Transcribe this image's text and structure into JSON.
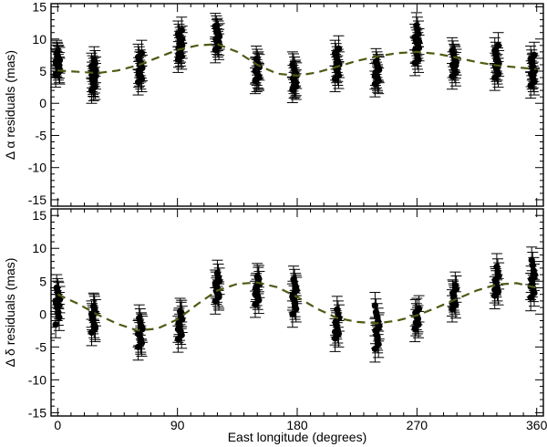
{
  "chart_data": [
    {
      "type": "scatter",
      "ylabel": "Δ α residuals (mas)",
      "xlim": [
        -5,
        365
      ],
      "ylim": [
        -16,
        15.5
      ],
      "xticks": [
        0,
        90,
        180,
        270,
        360
      ],
      "yticks": [
        -15,
        -10,
        -5,
        0,
        5,
        10,
        15
      ],
      "grid": false,
      "error_bar": 2,
      "groups": [
        {
          "x": 0,
          "y": [
            4.5,
            5.2,
            5.6,
            6.0,
            6.3,
            6.7,
            7.0,
            7.3,
            7.8,
            6.5,
            5.9,
            6.9,
            7.5,
            6.1,
            5.0
          ]
        },
        {
          "x": 27,
          "y": [
            2.0,
            2.6,
            3.0,
            3.4,
            3.8,
            4.2,
            4.6,
            5.0,
            5.4,
            5.8,
            6.2,
            6.8,
            3.1,
            4.4,
            5.2,
            3.6,
            2.4
          ]
        },
        {
          "x": 62,
          "y": [
            3.3,
            3.8,
            4.2,
            4.7,
            5.1,
            5.5,
            5.9,
            6.3,
            6.8,
            7.2,
            7.8,
            5.3,
            6.0,
            4.5
          ]
        },
        {
          "x": 92,
          "y": [
            6.8,
            7.3,
            7.8,
            8.2,
            8.6,
            9.0,
            9.4,
            9.8,
            10.3,
            10.8,
            11.4,
            8.4,
            9.2,
            7.6,
            10.0
          ]
        },
        {
          "x": 120,
          "y": [
            8.3,
            8.8,
            9.2,
            9.6,
            10.0,
            10.4,
            10.8,
            11.2,
            11.6,
            12.0,
            9.5,
            10.2,
            11.0
          ]
        },
        {
          "x": 150,
          "y": [
            3.5,
            4.0,
            4.4,
            4.8,
            5.2,
            5.6,
            6.0,
            6.4,
            6.9,
            5.0,
            4.2,
            5.8,
            3.8
          ]
        },
        {
          "x": 178,
          "y": [
            2.1,
            2.6,
            3.0,
            3.5,
            3.9,
            4.3,
            4.7,
            5.2,
            5.7,
            6.0,
            3.2,
            4.5,
            2.8
          ]
        },
        {
          "x": 210,
          "y": [
            3.8,
            4.3,
            4.8,
            5.2,
            5.6,
            6.0,
            6.4,
            6.8,
            7.3,
            7.8,
            8.5,
            5.4,
            6.2
          ]
        },
        {
          "x": 240,
          "y": [
            3.0,
            3.5,
            4.0,
            4.4,
            4.8,
            5.2,
            5.6,
            6.0,
            6.5,
            4.2,
            5.4,
            3.7
          ]
        },
        {
          "x": 270,
          "y": [
            6.3,
            6.8,
            7.3,
            7.8,
            8.2,
            8.6,
            9.0,
            9.4,
            9.8,
            10.3,
            10.8,
            11.4,
            12.1,
            8.4,
            9.6
          ]
        },
        {
          "x": 298,
          "y": [
            4.2,
            4.7,
            5.2,
            5.6,
            6.0,
            6.4,
            6.8,
            7.2,
            7.7,
            8.2,
            5.9,
            7.0
          ]
        },
        {
          "x": 330,
          "y": [
            4.0,
            4.5,
            5.0,
            5.4,
            5.8,
            6.2,
            6.6,
            7.0,
            7.5,
            8.2,
            9.0,
            5.6,
            6.8
          ]
        },
        {
          "x": 357,
          "y": [
            2.8,
            3.3,
            3.8,
            4.2,
            4.6,
            5.0,
            5.4,
            5.8,
            6.3,
            6.9,
            7.5,
            4.4,
            5.6
          ]
        }
      ],
      "curve": {
        "x": [
          0,
          15,
          30,
          45,
          60,
          75,
          90,
          105,
          120,
          135,
          150,
          165,
          180,
          195,
          210,
          225,
          240,
          255,
          270,
          285,
          300,
          315,
          330,
          345,
          360
        ],
        "y": [
          5.1,
          4.9,
          4.7,
          5.1,
          5.9,
          7.1,
          8.3,
          9.0,
          9.2,
          8.0,
          6.0,
          4.6,
          4.3,
          4.8,
          5.7,
          6.6,
          7.3,
          7.8,
          8.0,
          7.7,
          7.1,
          6.4,
          5.9,
          5.6,
          5.3
        ]
      }
    },
    {
      "type": "scatter",
      "xlabel": "East longitude (degrees)",
      "ylabel": "Δ δ residuals (mas)",
      "xlim": [
        -5,
        365
      ],
      "ylim": [
        -15.5,
        16
      ],
      "xticks": [
        0,
        90,
        180,
        270,
        360
      ],
      "yticks": [
        -15,
        -10,
        -5,
        0,
        5,
        10,
        15
      ],
      "grid": false,
      "error_bar": 2,
      "groups": [
        {
          "x": 0,
          "y": [
            -1.6,
            -0.5,
            0.3,
            1.0,
            1.6,
            2.2,
            2.8,
            3.4,
            4.0,
            2.0,
            1.3,
            3.0
          ]
        },
        {
          "x": 27,
          "y": [
            -2.8,
            -2.2,
            -1.6,
            -1.0,
            -0.4,
            0.2,
            0.7,
            1.2,
            -0.7,
            0.0,
            -1.9,
            1.0
          ]
        },
        {
          "x": 62,
          "y": [
            -5.0,
            -4.4,
            -3.8,
            -3.3,
            -2.8,
            -2.3,
            -1.8,
            -1.2,
            -0.6,
            -3.0,
            -2.0,
            -4.1
          ]
        },
        {
          "x": 92,
          "y": [
            -3.8,
            -3.2,
            -2.6,
            -2.0,
            -1.4,
            -0.8,
            -0.2,
            0.4,
            -1.1,
            -2.3,
            0.1
          ]
        },
        {
          "x": 120,
          "y": [
            2.0,
            2.6,
            3.2,
            3.8,
            4.4,
            5.0,
            5.6,
            6.2,
            3.5,
            4.7,
            2.9
          ]
        },
        {
          "x": 150,
          "y": [
            1.5,
            2.1,
            2.7,
            3.3,
            3.9,
            4.5,
            5.1,
            5.7,
            4.2,
            3.0,
            5.4
          ]
        },
        {
          "x": 178,
          "y": [
            0.0,
            0.8,
            1.6,
            2.3,
            3.0,
            3.6,
            4.2,
            4.8,
            5.3,
            2.6,
            3.9,
            1.2
          ]
        },
        {
          "x": 210,
          "y": [
            -3.7,
            -3.0,
            -2.4,
            -1.8,
            -1.2,
            -0.6,
            0.0,
            0.7,
            -1.5,
            -2.7
          ]
        },
        {
          "x": 240,
          "y": [
            -5.3,
            -4.6,
            -3.9,
            -3.2,
            -2.5,
            -1.8,
            -1.1,
            -0.4,
            0.3,
            1.3,
            -2.1,
            -3.5
          ]
        },
        {
          "x": 270,
          "y": [
            -2.2,
            -1.6,
            -1.0,
            -0.4,
            0.2,
            0.8,
            -0.7,
            0.4,
            -1.3
          ]
        },
        {
          "x": 298,
          "y": [
            0.8,
            1.4,
            2.0,
            2.6,
            3.2,
            3.8,
            4.4,
            2.3,
            3.0,
            1.7
          ]
        },
        {
          "x": 330,
          "y": [
            2.8,
            3.4,
            4.0,
            4.6,
            5.2,
            5.8,
            6.4,
            7.2,
            4.9,
            3.7
          ]
        },
        {
          "x": 357,
          "y": [
            2.5,
            3.2,
            3.9,
            4.6,
            5.3,
            6.0,
            6.6,
            7.4,
            8.2,
            4.2,
            5.6
          ]
        }
      ],
      "curve": {
        "x": [
          0,
          15,
          30,
          45,
          60,
          75,
          90,
          105,
          120,
          135,
          150,
          165,
          180,
          195,
          210,
          225,
          240,
          255,
          270,
          285,
          300,
          315,
          330,
          345,
          360
        ],
        "y": [
          3.0,
          1.6,
          -0.1,
          -1.5,
          -2.5,
          -2.2,
          -0.8,
          1.5,
          3.6,
          4.6,
          4.8,
          4.1,
          2.6,
          0.8,
          -0.6,
          -1.2,
          -1.4,
          -1.0,
          -0.2,
          1.0,
          2.3,
          3.6,
          4.5,
          4.7,
          4.0
        ]
      }
    }
  ],
  "colors": {
    "points": "#000000",
    "curve": "#4d5b12",
    "frame": "#000000"
  }
}
